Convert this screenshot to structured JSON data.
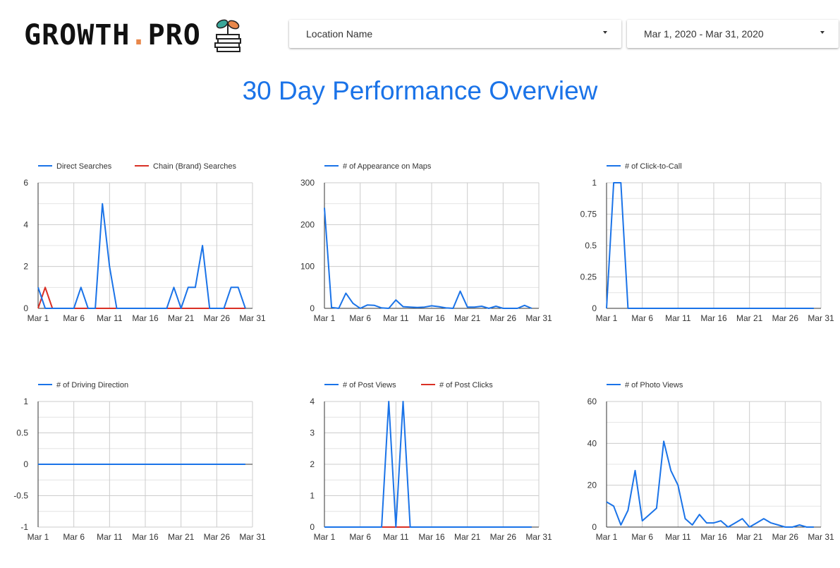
{
  "brand": {
    "name_main": "GROWTH",
    "name_dot": ".",
    "name_end": "PRO"
  },
  "filters": {
    "location": "Location Name",
    "date_range": "Mar 1, 2020 - Mar 31, 2020"
  },
  "page_title": "30 Day Performance Overview",
  "colors": {
    "blue": "#1a73e8",
    "red": "#d93025",
    "grid": "#cccccc",
    "title": "#1a73e8"
  },
  "chart_data": [
    {
      "type": "line",
      "x": [
        "Mar 1",
        "Mar 2",
        "Mar 3",
        "Mar 4",
        "Mar 5",
        "Mar 6",
        "Mar 7",
        "Mar 8",
        "Mar 9",
        "Mar 10",
        "Mar 11",
        "Mar 12",
        "Mar 13",
        "Mar 14",
        "Mar 15",
        "Mar 16",
        "Mar 17",
        "Mar 18",
        "Mar 19",
        "Mar 20",
        "Mar 21",
        "Mar 22",
        "Mar 23",
        "Mar 24",
        "Mar 25",
        "Mar 26",
        "Mar 27",
        "Mar 28",
        "Mar 29",
        "Mar 30"
      ],
      "xticks": [
        "Mar 1",
        "Mar 6",
        "Mar 11",
        "Mar 16",
        "Mar 21",
        "Mar 26",
        "Mar 31"
      ],
      "ylim": [
        0,
        6
      ],
      "yticks": [
        0,
        2,
        4,
        6
      ],
      "yticklabels": [
        "0",
        "2",
        "4",
        "6"
      ],
      "grid": true,
      "legend_position": "top-left",
      "series": [
        {
          "name": "Direct Searches",
          "color": "#1a73e8",
          "values": [
            1,
            0,
            0,
            0,
            0,
            0,
            1,
            0,
            0,
            5,
            2,
            0,
            0,
            0,
            0,
            0,
            0,
            0,
            0,
            1,
            0,
            1,
            1,
            3,
            0,
            0,
            0,
            1,
            1,
            0
          ]
        },
        {
          "name": "Chain (Brand) Searches",
          "color": "#d93025",
          "values": [
            0,
            1,
            0,
            0,
            0,
            0,
            0,
            0,
            0,
            0,
            0,
            0,
            0,
            0,
            0,
            0,
            0,
            0,
            0,
            0,
            0,
            0,
            0,
            0,
            0,
            0,
            0,
            0,
            0,
            0
          ]
        }
      ]
    },
    {
      "type": "line",
      "x": [
        "Mar 1",
        "Mar 2",
        "Mar 3",
        "Mar 4",
        "Mar 5",
        "Mar 6",
        "Mar 7",
        "Mar 8",
        "Mar 9",
        "Mar 10",
        "Mar 11",
        "Mar 12",
        "Mar 13",
        "Mar 14",
        "Mar 15",
        "Mar 16",
        "Mar 17",
        "Mar 18",
        "Mar 19",
        "Mar 20",
        "Mar 21",
        "Mar 22",
        "Mar 23",
        "Mar 24",
        "Mar 25",
        "Mar 26",
        "Mar 27",
        "Mar 28",
        "Mar 29",
        "Mar 30"
      ],
      "xticks": [
        "Mar 1",
        "Mar 6",
        "Mar 11",
        "Mar 16",
        "Mar 21",
        "Mar 26",
        "Mar 31"
      ],
      "ylim": [
        0,
        300
      ],
      "yticks": [
        0,
        100,
        200,
        300
      ],
      "yticklabels": [
        "0",
        "100",
        "200",
        "300"
      ],
      "grid": true,
      "legend_position": "top-left",
      "series": [
        {
          "name": "# of Appearance on Maps",
          "color": "#1a73e8",
          "values": [
            240,
            2,
            0,
            36,
            12,
            0,
            8,
            7,
            1,
            0,
            20,
            4,
            3,
            2,
            3,
            6,
            4,
            1,
            0,
            41,
            3,
            3,
            5,
            0,
            5,
            0,
            0,
            0,
            7,
            0
          ]
        }
      ]
    },
    {
      "type": "line",
      "x": [
        "Mar 1",
        "Mar 2",
        "Mar 3",
        "Mar 4",
        "Mar 5",
        "Mar 6",
        "Mar 7",
        "Mar 8",
        "Mar 9",
        "Mar 10",
        "Mar 11",
        "Mar 12",
        "Mar 13",
        "Mar 14",
        "Mar 15",
        "Mar 16",
        "Mar 17",
        "Mar 18",
        "Mar 19",
        "Mar 20",
        "Mar 21",
        "Mar 22",
        "Mar 23",
        "Mar 24",
        "Mar 25",
        "Mar 26",
        "Mar 27",
        "Mar 28",
        "Mar 29",
        "Mar 30"
      ],
      "xticks": [
        "Mar 1",
        "Mar 6",
        "Mar 11",
        "Mar 16",
        "Mar 21",
        "Mar 26",
        "Mar 31"
      ],
      "ylim": [
        0,
        1
      ],
      "yticks": [
        0,
        0.25,
        0.5,
        0.75,
        1
      ],
      "yticklabels": [
        "0",
        "0.25",
        "0.5",
        "0.75",
        "1"
      ],
      "grid": true,
      "legend_position": "top-left",
      "series": [
        {
          "name": "# of Click-to-Call",
          "color": "#1a73e8",
          "values": [
            0,
            1,
            1,
            0,
            0,
            0,
            0,
            0,
            0,
            0,
            0,
            0,
            0,
            0,
            0,
            0,
            0,
            0,
            0,
            0,
            0,
            0,
            0,
            0,
            0,
            0,
            0,
            0,
            0,
            0
          ]
        }
      ]
    },
    {
      "type": "line",
      "x": [
        "Mar 1",
        "Mar 2",
        "Mar 3",
        "Mar 4",
        "Mar 5",
        "Mar 6",
        "Mar 7",
        "Mar 8",
        "Mar 9",
        "Mar 10",
        "Mar 11",
        "Mar 12",
        "Mar 13",
        "Mar 14",
        "Mar 15",
        "Mar 16",
        "Mar 17",
        "Mar 18",
        "Mar 19",
        "Mar 20",
        "Mar 21",
        "Mar 22",
        "Mar 23",
        "Mar 24",
        "Mar 25",
        "Mar 26",
        "Mar 27",
        "Mar 28",
        "Mar 29",
        "Mar 30"
      ],
      "xticks": [
        "Mar 1",
        "Mar 6",
        "Mar 11",
        "Mar 16",
        "Mar 21",
        "Mar 26",
        "Mar 31"
      ],
      "ylim": [
        -1,
        1
      ],
      "yticks": [
        -1,
        -0.5,
        0,
        0.5,
        1
      ],
      "yticklabels": [
        "-1",
        "-0.5",
        "0",
        "0.5",
        "1"
      ],
      "grid": true,
      "legend_position": "top-left",
      "series": [
        {
          "name": "# of Driving Direction",
          "color": "#1a73e8",
          "values": [
            0,
            0,
            0,
            0,
            0,
            0,
            0,
            0,
            0,
            0,
            0,
            0,
            0,
            0,
            0,
            0,
            0,
            0,
            0,
            0,
            0,
            0,
            0,
            0,
            0,
            0,
            0,
            0,
            0,
            0
          ]
        }
      ]
    },
    {
      "type": "line",
      "x": [
        "Mar 1",
        "Mar 2",
        "Mar 3",
        "Mar 4",
        "Mar 5",
        "Mar 6",
        "Mar 7",
        "Mar 8",
        "Mar 9",
        "Mar 10",
        "Mar 11",
        "Mar 12",
        "Mar 13",
        "Mar 14",
        "Mar 15",
        "Mar 16",
        "Mar 17",
        "Mar 18",
        "Mar 19",
        "Mar 20",
        "Mar 21",
        "Mar 22",
        "Mar 23",
        "Mar 24",
        "Mar 25",
        "Mar 26",
        "Mar 27",
        "Mar 28",
        "Mar 29",
        "Mar 30"
      ],
      "xticks": [
        "Mar 1",
        "Mar 6",
        "Mar 11",
        "Mar 16",
        "Mar 21",
        "Mar 26",
        "Mar 31"
      ],
      "ylim": [
        0,
        4
      ],
      "yticks": [
        0,
        1,
        2,
        3,
        4
      ],
      "yticklabels": [
        "0",
        "1",
        "2",
        "3",
        "4"
      ],
      "grid": true,
      "legend_position": "top-left",
      "series": [
        {
          "name": "# of Post Views",
          "color": "#1a73e8",
          "values": [
            0,
            0,
            0,
            0,
            0,
            0,
            0,
            0,
            0,
            4,
            0,
            4,
            0,
            0,
            0,
            0,
            0,
            0,
            0,
            0,
            0,
            0,
            0,
            0,
            0,
            0,
            0,
            0,
            0,
            0
          ]
        },
        {
          "name": "# of Post Clicks",
          "color": "#d93025",
          "values": [
            0,
            0,
            0,
            0,
            0,
            0,
            0,
            0,
            0,
            0,
            0,
            0,
            0,
            0,
            0,
            0,
            0,
            0,
            0,
            0,
            0,
            0,
            0,
            0,
            0,
            0,
            0,
            0,
            0,
            0
          ]
        }
      ]
    },
    {
      "type": "line",
      "x": [
        "Mar 1",
        "Mar 2",
        "Mar 3",
        "Mar 4",
        "Mar 5",
        "Mar 6",
        "Mar 7",
        "Mar 8",
        "Mar 9",
        "Mar 10",
        "Mar 11",
        "Mar 12",
        "Mar 13",
        "Mar 14",
        "Mar 15",
        "Mar 16",
        "Mar 17",
        "Mar 18",
        "Mar 19",
        "Mar 20",
        "Mar 21",
        "Mar 22",
        "Mar 23",
        "Mar 24",
        "Mar 25",
        "Mar 26",
        "Mar 27",
        "Mar 28",
        "Mar 29",
        "Mar 30"
      ],
      "xticks": [
        "Mar 1",
        "Mar 6",
        "Mar 11",
        "Mar 16",
        "Mar 21",
        "Mar 26",
        "Mar 31"
      ],
      "ylim": [
        0,
        60
      ],
      "yticks": [
        0,
        20,
        40,
        60
      ],
      "yticklabels": [
        "0",
        "20",
        "40",
        "60"
      ],
      "grid": true,
      "legend_position": "top-left",
      "series": [
        {
          "name": "# of Photo Views",
          "color": "#1a73e8",
          "values": [
            12,
            10,
            1,
            8,
            27,
            3,
            6,
            9,
            41,
            27,
            20,
            4,
            1,
            6,
            2,
            2,
            3,
            0,
            2,
            4,
            0,
            2,
            4,
            2,
            1,
            0,
            0,
            1,
            0,
            0
          ]
        }
      ]
    }
  ]
}
